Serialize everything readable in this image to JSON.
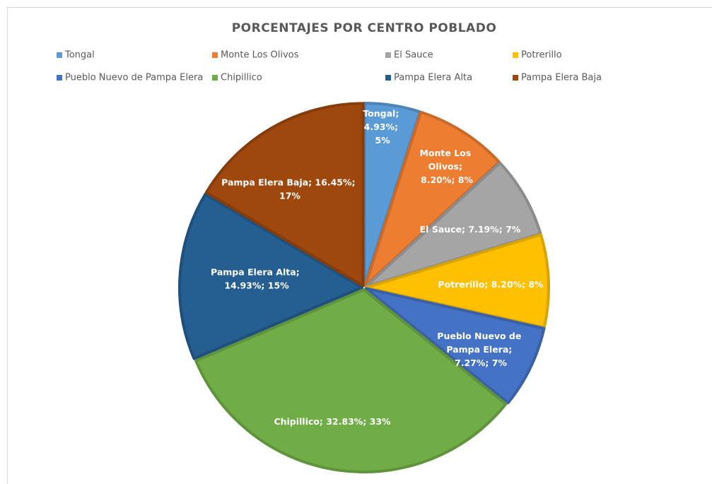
{
  "chart_data": {
    "type": "pie",
    "title": "PORCENTAJES POR CENTRO POBLADO",
    "categories": [
      "Tongal",
      "Monte Los Olivos",
      "El Sauce",
      "Potrerillo",
      "Pueblo Nuevo de Pampa Elera",
      "Chipillico",
      "Pampa Elera Alta",
      "Pampa Elera Baja"
    ],
    "values": [
      4.93,
      8.2,
      7.19,
      8.2,
      7.27,
      32.83,
      14.93,
      16.45
    ],
    "value_labels": [
      "Tongal; 4.93%; 5%",
      "Monte Los Olivos; 8.20%; 8%",
      "El Sauce; 7.19%; 7%",
      "Potrerillo; 8.20%; 8%",
      "Pueblo Nuevo de Pampa Elera; 7.27%; 7%",
      "Chipillico; 32.83%; 33%",
      "Pampa Elera Alta; 14.93%; 15%",
      "Pampa Elera Baja; 16.45%; 17%"
    ],
    "colors": [
      "#5b9bd5",
      "#ed7d31",
      "#a5a5a5",
      "#ffc000",
      "#4472c4",
      "#70ad47",
      "#255e91",
      "#9e480e"
    ],
    "legend": "top"
  }
}
